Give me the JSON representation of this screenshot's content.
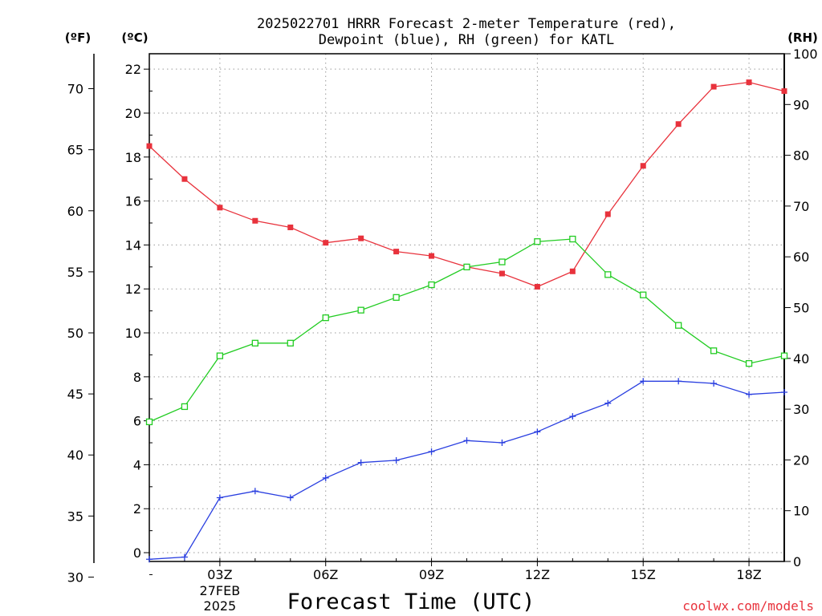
{
  "chart_data": {
    "type": "line",
    "title": {
      "line1": "2025022701 HRRR Forecast 2-meter Temperature (red),",
      "line2": "Dewpoint (blue), RH (green) for KATL"
    },
    "xlabel": "Forecast Time (UTC)",
    "x_hours": [
      1,
      2,
      3,
      4,
      5,
      6,
      7,
      8,
      9,
      10,
      11,
      12,
      13,
      14,
      15,
      16,
      17,
      18,
      19
    ],
    "x_range_hours": [
      1,
      19
    ],
    "x_ticks": [
      {
        "hour": 3,
        "label": "03Z",
        "sub1": "27FEB",
        "sub2": "2025"
      },
      {
        "hour": 6,
        "label": "06Z",
        "sub1": "",
        "sub2": ""
      },
      {
        "hour": 9,
        "label": "09Z",
        "sub1": "",
        "sub2": ""
      },
      {
        "hour": 12,
        "label": "12Z",
        "sub1": "",
        "sub2": ""
      },
      {
        "hour": 15,
        "label": "15Z",
        "sub1": "",
        "sub2": ""
      },
      {
        "hour": 18,
        "label": "18Z",
        "sub1": "",
        "sub2": ""
      }
    ],
    "axes": {
      "celsius": {
        "label": "(ºC)",
        "range": [
          -0.4,
          22.7
        ],
        "ticks": [
          0,
          2,
          4,
          6,
          8,
          10,
          12,
          14,
          16,
          18,
          20,
          22
        ]
      },
      "fahrenheit": {
        "label": "(ºF)",
        "ticks": [
          30,
          35,
          40,
          45,
          50,
          55,
          60,
          65,
          70
        ]
      },
      "rh": {
        "label": "(RH)",
        "range": [
          0,
          100
        ],
        "ticks": [
          0,
          10,
          20,
          30,
          40,
          50,
          60,
          70,
          80,
          90,
          100
        ]
      }
    },
    "grid": true,
    "series": [
      {
        "color": "#e8323c",
        "axis": "celsius",
        "marker": "filled-square",
        "values": [
          18.5,
          17.0,
          15.7,
          15.1,
          14.8,
          14.1,
          14.3,
          13.7,
          13.5,
          13.0,
          12.7,
          12.1,
          12.8,
          15.4,
          17.6,
          19.5,
          21.2,
          21.4,
          21.0
        ]
      },
      {
        "color": "#2a3fe0",
        "axis": "celsius",
        "marker": "plus",
        "values": [
          -0.3,
          -0.2,
          2.5,
          2.8,
          2.5,
          3.4,
          4.1,
          4.2,
          4.6,
          5.1,
          5.0,
          5.5,
          6.2,
          6.8,
          7.8,
          7.8,
          7.7,
          7.2,
          7.3
        ]
      },
      {
        "color": "#22cc22",
        "axis": "rh",
        "marker": "open-square",
        "values": [
          27.5,
          30.5,
          40.5,
          43.0,
          43.0,
          48.0,
          49.5,
          52.0,
          54.5,
          58.0,
          59.0,
          63.0,
          63.5,
          56.5,
          52.5,
          46.5,
          41.5,
          39.0,
          40.5
        ]
      }
    ]
  },
  "credit": "coolwx.com/models"
}
